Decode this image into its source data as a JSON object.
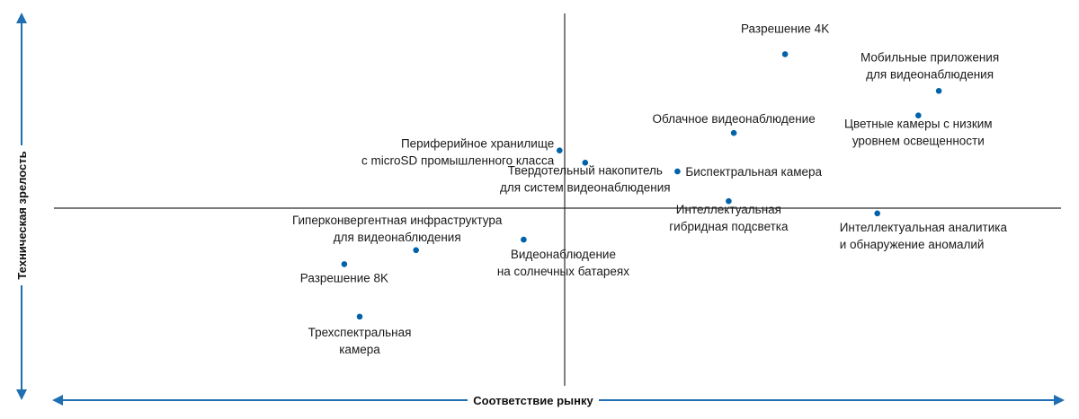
{
  "chart_data": {
    "type": "scatter",
    "xlabel": "Соответствие рынку",
    "ylabel": "Техническая зрелость",
    "xlim": [
      -10,
      10
    ],
    "ylim": [
      -10,
      10
    ],
    "quadrant_lines": {
      "x": 0,
      "y": 0
    },
    "grid": false,
    "colors": {
      "point": "#0062a8",
      "axis": "#1f6fb2",
      "divider": "#2b2b2b",
      "text": "#1a1a1a"
    },
    "points": [
      {
        "lines": [
          "Разрешение 4K"
        ],
        "x": 4.3,
        "y": 8.8
      },
      {
        "lines": [
          "Мобильные приложения",
          "для видеонаблюдения"
        ],
        "x": 7.3,
        "y": 6.7
      },
      {
        "lines": [
          "Цветные камеры с низким",
          "уровнем освещенности"
        ],
        "x": 6.9,
        "y": 5.3
      },
      {
        "lines": [
          "Облачное видеонаблюдение"
        ],
        "x": 3.3,
        "y": 4.3
      },
      {
        "lines": [
          "Периферийное хранилище",
          "с microSD промышленного класса"
        ],
        "x": -0.1,
        "y": 3.3
      },
      {
        "lines": [
          "Твердотельный накопитель",
          "для систем видеонаблюдения"
        ],
        "x": 0.4,
        "y": 2.6
      },
      {
        "lines": [
          "Биспектральная камера"
        ],
        "x": 2.2,
        "y": 2.1
      },
      {
        "lines": [
          "Интеллектуальная",
          "гибридная подсветка"
        ],
        "x": 3.2,
        "y": 0.4
      },
      {
        "lines": [
          "Интеллектуальная аналитика",
          "и обнаружение аномалий"
        ],
        "x": 6.1,
        "y": -0.3
      },
      {
        "lines": [
          "Гиперконвергентная инфраструктура",
          "для видеонаблюдения"
        ],
        "x": -2.9,
        "y": -2.4
      },
      {
        "lines": [
          "Видеонаблюдение",
          "на солнечных батареях"
        ],
        "x": -0.8,
        "y": -1.8
      },
      {
        "lines": [
          "Разрешение 8K"
        ],
        "x": -4.3,
        "y": -3.2
      },
      {
        "lines": [
          "Трехспектральная",
          "камера"
        ],
        "x": -4.0,
        "y": -6.2
      }
    ]
  }
}
